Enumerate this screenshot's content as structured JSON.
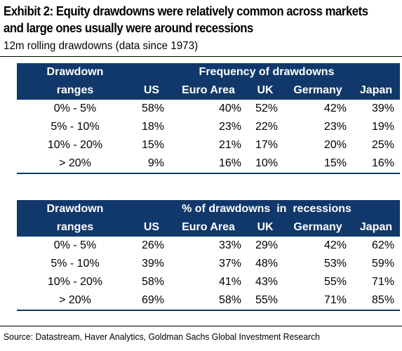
{
  "title": "Exhibit 2: Equity drawdowns were relatively common across markets and large ones usually were around recessions",
  "subtitle": "12m rolling drawdowns (data since 1973)",
  "source": "Source: Datastream, Haver Analytics, Goldman Sachs Global Investment Research",
  "colors": {
    "header_bg": "#11386b",
    "header_text": "#ffffff"
  },
  "chart_data": [
    {
      "type": "table",
      "row_header_label_line1": "Drawdown",
      "row_header_label_line2": "ranges",
      "group_header": "Frequency of drawdowns",
      "columns": [
        "US",
        "Euro Area",
        "UK",
        "Germany",
        "Japan"
      ],
      "rows": [
        {
          "range": "0% - 5%",
          "values": [
            "58%",
            "40%",
            "52%",
            "42%",
            "39%"
          ]
        },
        {
          "range": "5% - 10%",
          "values": [
            "18%",
            "23%",
            "22%",
            "23%",
            "19%"
          ]
        },
        {
          "range": "10% - 20%",
          "values": [
            "15%",
            "21%",
            "17%",
            "20%",
            "25%"
          ]
        },
        {
          "range": "> 20%",
          "values": [
            "9%",
            "16%",
            "10%",
            "15%",
            "16%"
          ]
        }
      ]
    },
    {
      "type": "table",
      "row_header_label_line1": "Drawdown",
      "row_header_label_line2": "ranges",
      "group_header": "% of drawdowns  in  recessions",
      "columns": [
        "US",
        "Euro Area",
        "UK",
        "Germany",
        "Japan"
      ],
      "rows": [
        {
          "range": "0% - 5%",
          "values": [
            "26%",
            "33%",
            "29%",
            "42%",
            "62%"
          ]
        },
        {
          "range": "5% - 10%",
          "values": [
            "39%",
            "37%",
            "48%",
            "53%",
            "59%"
          ]
        },
        {
          "range": "10% - 20%",
          "values": [
            "58%",
            "41%",
            "43%",
            "55%",
            "71%"
          ]
        },
        {
          "range": "> 20%",
          "values": [
            "69%",
            "58%",
            "55%",
            "71%",
            "85%"
          ]
        }
      ]
    }
  ]
}
